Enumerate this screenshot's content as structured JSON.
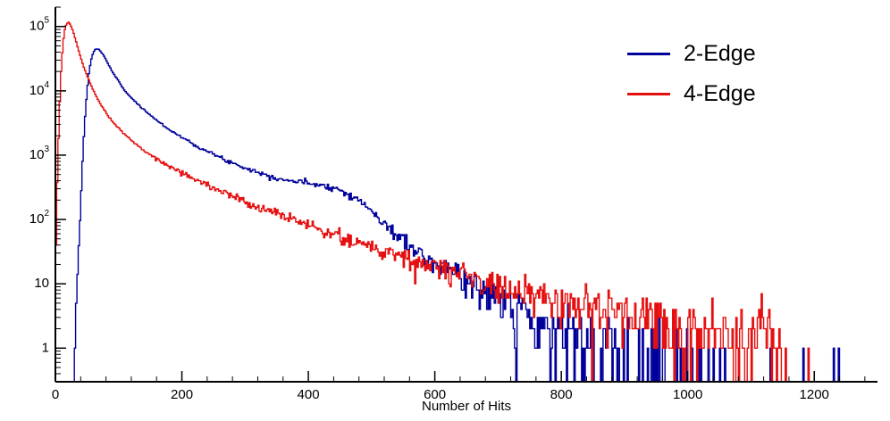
{
  "chart_data": {
    "type": "line",
    "subtype": "step-histogram-log-y",
    "title": "",
    "xlabel": "Number of Hits",
    "ylabel": "",
    "x_axis": {
      "min": 0,
      "max": 1300,
      "ticks": [
        {
          "v": 0,
          "label": "0"
        },
        {
          "v": 200,
          "label": "200"
        },
        {
          "v": 400,
          "label": "400"
        },
        {
          "v": 600,
          "label": "600"
        },
        {
          "v": 800,
          "label": "800"
        },
        {
          "v": 1000,
          "label": "1000"
        },
        {
          "v": 1200,
          "label": "1200"
        }
      ],
      "minor_step": 40
    },
    "y_axis": {
      "scale": "log",
      "min": 0.3,
      "max": 200000,
      "decades": [
        {
          "v": 1,
          "m": "1",
          "e": ""
        },
        {
          "v": 10,
          "m": "10",
          "e": ""
        },
        {
          "v": 100,
          "m": "10",
          "e": "2"
        },
        {
          "v": 1000,
          "m": "10",
          "e": "3"
        },
        {
          "v": 10000,
          "m": "10",
          "e": "4"
        },
        {
          "v": 100000,
          "m": "10",
          "e": "5"
        }
      ]
    },
    "legend": {
      "position": "top-right",
      "entries": [
        {
          "label": "2-Edge",
          "color": "#00009a"
        },
        {
          "label": "4-Edge",
          "color": "#e60f0f"
        }
      ]
    },
    "noise": {
      "model": "poisson",
      "seed": 7
    },
    "series": [
      {
        "name": "2-Edge",
        "color": "#00009a",
        "bin_width": 2,
        "control_points": [
          [
            20,
            0.005
          ],
          [
            26,
            0.2
          ],
          [
            30,
            1.2
          ],
          [
            34,
            8
          ],
          [
            38,
            60
          ],
          [
            42,
            500
          ],
          [
            46,
            3000
          ],
          [
            50,
            10000
          ],
          [
            54,
            22000
          ],
          [
            58,
            35000
          ],
          [
            62,
            43000
          ],
          [
            66,
            45000
          ],
          [
            70,
            43000
          ],
          [
            76,
            36000
          ],
          [
            82,
            28000
          ],
          [
            90,
            20000
          ],
          [
            100,
            14000
          ],
          [
            110,
            10000
          ],
          [
            120,
            7800
          ],
          [
            135,
            5600
          ],
          [
            150,
            4200
          ],
          [
            165,
            3200
          ],
          [
            180,
            2500
          ],
          [
            200,
            1900
          ],
          [
            220,
            1450
          ],
          [
            240,
            1150
          ],
          [
            260,
            920
          ],
          [
            280,
            760
          ],
          [
            300,
            640
          ],
          [
            320,
            545
          ],
          [
            340,
            470
          ],
          [
            360,
            420
          ],
          [
            380,
            390
          ],
          [
            400,
            370
          ],
          [
            415,
            355
          ],
          [
            430,
            330
          ],
          [
            445,
            300
          ],
          [
            460,
            260
          ],
          [
            475,
            215
          ],
          [
            490,
            165
          ],
          [
            505,
            120
          ],
          [
            520,
            85
          ],
          [
            535,
            62
          ],
          [
            550,
            47
          ],
          [
            565,
            37
          ],
          [
            580,
            30
          ],
          [
            600,
            23
          ],
          [
            620,
            18
          ],
          [
            640,
            14
          ],
          [
            660,
            11
          ],
          [
            680,
            8.5
          ],
          [
            700,
            6.5
          ],
          [
            730,
            4.5
          ],
          [
            760,
            2.5
          ],
          [
            800,
            1.6
          ],
          [
            850,
            1.05
          ],
          [
            900,
            0.75
          ],
          [
            950,
            0.55
          ],
          [
            1000,
            0.38
          ],
          [
            1060,
            0.25
          ],
          [
            1120,
            0.15
          ],
          [
            1160,
            0.08
          ],
          [
            1220,
            0.04
          ],
          [
            1300,
            0.03
          ]
        ]
      },
      {
        "name": "4-Edge",
        "color": "#e60f0f",
        "bin_width": 2,
        "control_points": [
          [
            1,
            50
          ],
          [
            3,
            400
          ],
          [
            6,
            4000
          ],
          [
            9,
            20000
          ],
          [
            12,
            55000
          ],
          [
            15,
            90000
          ],
          [
            18,
            112000
          ],
          [
            21,
            116000
          ],
          [
            24,
            106000
          ],
          [
            28,
            85000
          ],
          [
            32,
            62000
          ],
          [
            36,
            45000
          ],
          [
            40,
            33000
          ],
          [
            45,
            23500
          ],
          [
            50,
            17500
          ],
          [
            56,
            12500
          ],
          [
            62,
            9200
          ],
          [
            68,
            7100
          ],
          [
            75,
            5400
          ],
          [
            82,
            4300
          ],
          [
            90,
            3400
          ],
          [
            100,
            2600
          ],
          [
            110,
            2100
          ],
          [
            120,
            1700
          ],
          [
            132,
            1360
          ],
          [
            145,
            1080
          ],
          [
            158,
            890
          ],
          [
            172,
            740
          ],
          [
            186,
            625
          ],
          [
            200,
            530
          ],
          [
            215,
            448
          ],
          [
            230,
            380
          ],
          [
            245,
            325
          ],
          [
            260,
            280
          ],
          [
            275,
            242
          ],
          [
            290,
            210
          ],
          [
            305,
            183
          ],
          [
            320,
            160
          ],
          [
            340,
            135
          ],
          [
            360,
            115
          ],
          [
            380,
            98
          ],
          [
            400,
            84
          ],
          [
            425,
            68
          ],
          [
            450,
            56
          ],
          [
            475,
            46
          ],
          [
            500,
            38
          ],
          [
            525,
            32
          ],
          [
            550,
            27
          ],
          [
            575,
            22
          ],
          [
            600,
            18
          ],
          [
            630,
            14.5
          ],
          [
            660,
            11.8
          ],
          [
            690,
            9.7
          ],
          [
            720,
            8.1
          ],
          [
            750,
            6.9
          ],
          [
            780,
            5.9
          ],
          [
            810,
            5.1
          ],
          [
            840,
            4.5
          ],
          [
            870,
            4.0
          ],
          [
            900,
            3.6
          ],
          [
            930,
            3.2
          ],
          [
            960,
            2.9
          ],
          [
            990,
            2.6
          ],
          [
            1020,
            2.4
          ],
          [
            1050,
            2.1
          ],
          [
            1080,
            1.9
          ],
          [
            1110,
            1.7
          ],
          [
            1135,
            1.2
          ],
          [
            1150,
            0.5
          ],
          [
            1170,
            0.05
          ],
          [
            1300,
            0.01
          ]
        ]
      }
    ]
  }
}
